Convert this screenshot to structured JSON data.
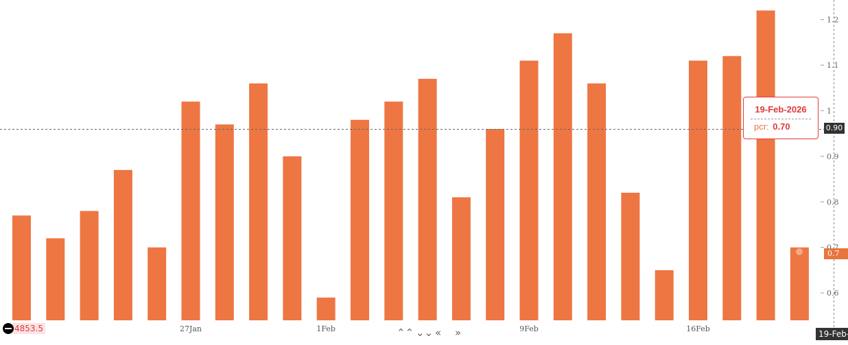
{
  "chart_data": {
    "type": "bar",
    "series": [
      {
        "name": "pcr",
        "color": "#ed7643",
        "values": [
          0.77,
          0.72,
          0.78,
          0.87,
          0.7,
          1.02,
          0.97,
          1.06,
          0.9,
          0.59,
          0.98,
          1.02,
          1.07,
          0.81,
          0.96,
          1.11,
          1.17,
          1.06,
          0.82,
          0.65,
          1.11,
          1.12,
          1.22,
          0.7
        ]
      }
    ],
    "x_tick_labels": [
      "27Jan",
      "1Feb",
      "9Feb",
      "16Feb"
    ],
    "y_ticks": [
      "0.6",
      "0.7",
      "0.8",
      "0.9",
      "1",
      "1.1",
      "1.2"
    ],
    "ylim": [
      0.54,
      1.24
    ],
    "grid": false,
    "crosshair_y": "0.90",
    "current_value_label": "0.7",
    "tooltip": {
      "date": "19-Feb-2026",
      "label": "pcr:",
      "value": "0.70"
    }
  },
  "left_value": "4853.5",
  "date_badge": "19-Feb-",
  "nav": {
    "up": "⌃⌃",
    "down": "⌄⌄",
    "left": "«",
    "right": "»"
  }
}
